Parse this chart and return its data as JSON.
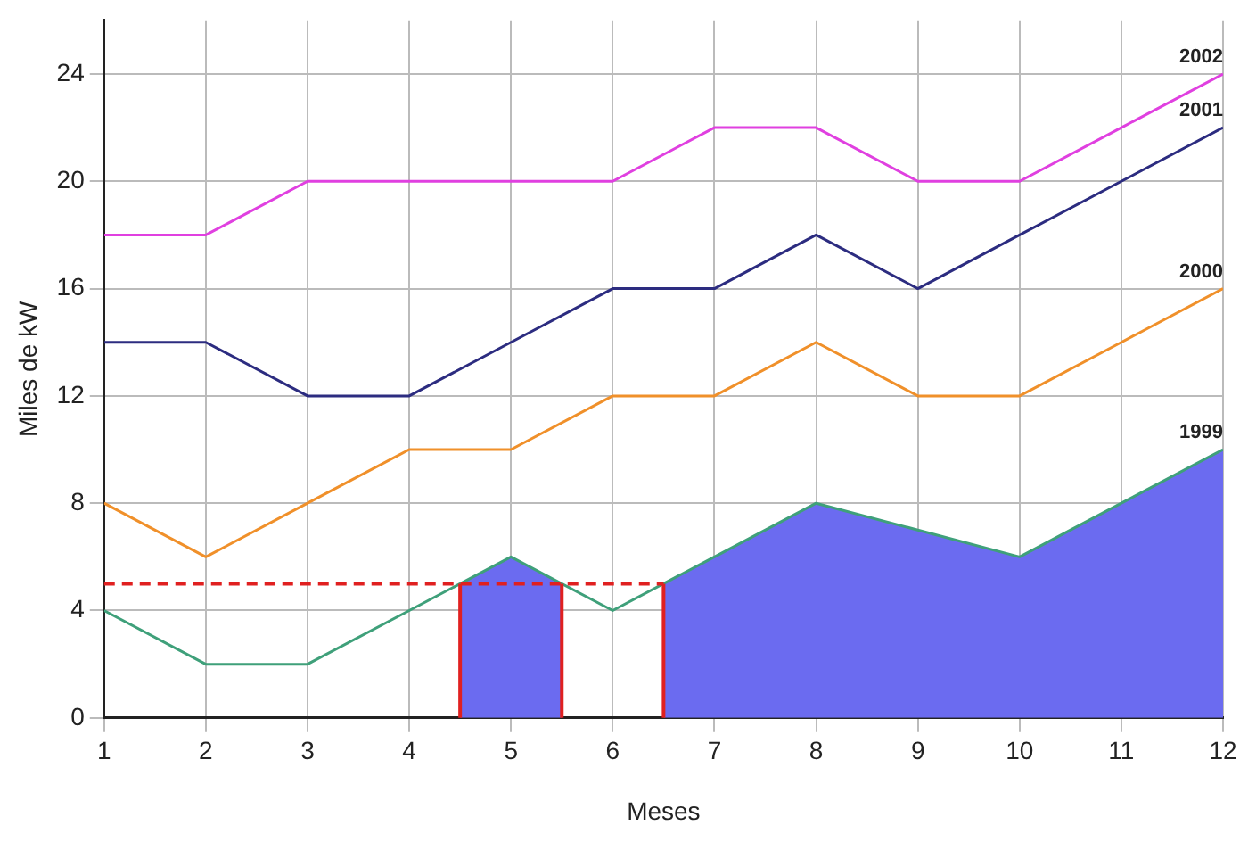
{
  "chart_data": {
    "type": "line",
    "xlabel": "Meses",
    "ylabel": "Miles de kW",
    "x": [
      1,
      2,
      3,
      4,
      5,
      6,
      7,
      8,
      9,
      10,
      11,
      12
    ],
    "xlim": [
      1,
      12
    ],
    "xticks": [
      1,
      2,
      3,
      4,
      5,
      6,
      7,
      8,
      9,
      10,
      11,
      12
    ],
    "ylim": [
      0,
      26
    ],
    "yticks": [
      0,
      4,
      8,
      12,
      16,
      20,
      24
    ],
    "grid": true,
    "legend": false,
    "marker": "none",
    "series": [
      {
        "type": "area",
        "color": "#6b6bf0",
        "x": [
          4.5,
          5,
          5.5
        ],
        "values": [
          5,
          6,
          5
        ]
      },
      {
        "type": "area",
        "color": "#6b6bf0",
        "x": [
          6.5,
          7,
          8,
          9,
          10,
          11,
          12
        ],
        "values": [
          5,
          6,
          8,
          7,
          6,
          8,
          10
        ]
      },
      {
        "name": "1999",
        "color": "#3fa07a",
        "values": [
          4,
          2,
          2,
          4,
          6,
          4,
          6,
          8,
          7,
          6,
          8,
          10
        ]
      },
      {
        "name": "2000",
        "color": "#f0902a",
        "values": [
          8,
          6,
          8,
          10,
          10,
          12,
          12,
          14,
          12,
          12,
          14,
          16
        ]
      },
      {
        "name": "2001",
        "color": "#2c2c80",
        "values": [
          14,
          14,
          12,
          12,
          14,
          16,
          16,
          18,
          16,
          18,
          20,
          22
        ]
      },
      {
        "name": "2002",
        "color": "#e040e0",
        "values": [
          18,
          18,
          20,
          20,
          20,
          20,
          22,
          22,
          20,
          20,
          22,
          24
        ]
      }
    ],
    "ref_lines": [
      {
        "axis": "y",
        "value": 5,
        "color": "#e02020",
        "line_style": "dashed"
      },
      {
        "axis": "x",
        "value": 4.5,
        "color": "#e02020",
        "line_style": "solid"
      },
      {
        "axis": "x",
        "value": 5.5,
        "color": "#e02020",
        "line_style": "solid"
      },
      {
        "axis": "x",
        "value": 6.5,
        "color": "#e02020",
        "line_style": "solid"
      }
    ]
  }
}
